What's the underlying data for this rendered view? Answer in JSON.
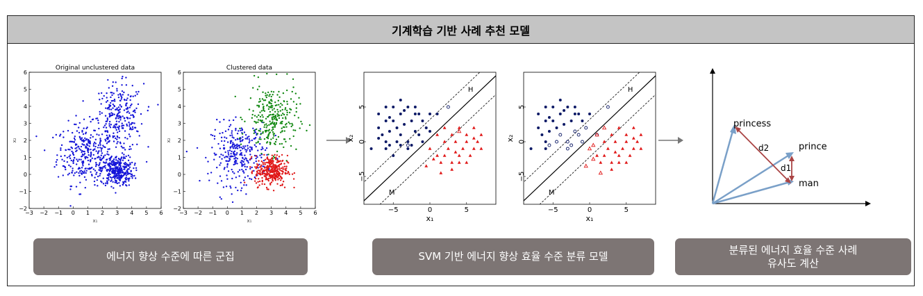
{
  "header": {
    "title": "기계학습 기반 사례 추천 모델"
  },
  "captions": [
    "에너지 향상 수준에 따른 군집",
    "SVM 기반 에너지 향상 효율 수준 분류 모델",
    "분류된 에너지 효율 수준 사례\n유사도 계산"
  ],
  "chart_data": [
    {
      "type": "scatter",
      "title": "Original unclustered data",
      "xlabel": "x₁",
      "ylabel": "x₂",
      "xlim": [
        -3,
        6
      ],
      "ylim": [
        -2,
        6
      ],
      "xticks": [
        "−3",
        "−2",
        "−1",
        "0",
        "1",
        "2",
        "3",
        "4",
        "5",
        "6"
      ],
      "yticks": [
        "−2",
        "−1",
        "0",
        "1",
        "2",
        "3",
        "4",
        "5",
        "6"
      ],
      "series": [
        {
          "color": "#1414d8",
          "clusters": [
            {
              "cx": 0.8,
              "cy": 1.2,
              "sx": 0.95,
              "sy": 0.9,
              "n": 300
            },
            {
              "cx": 3.1,
              "cy": 3.3,
              "sx": 0.85,
              "sy": 1.0,
              "n": 280
            },
            {
              "cx": 3.0,
              "cy": 0.2,
              "sx": 0.55,
              "sy": 0.45,
              "n": 320
            }
          ]
        }
      ]
    },
    {
      "type": "scatter",
      "title": "Clustered data",
      "xlabel": "x₁",
      "ylabel": "x₂",
      "xlim": [
        -3,
        6
      ],
      "ylim": [
        -2,
        6
      ],
      "xticks": [
        "−3",
        "−2",
        "−1",
        "0",
        "1",
        "2",
        "3",
        "4",
        "5",
        "6"
      ],
      "yticks": [
        "−2",
        "−1",
        "0",
        "1",
        "2",
        "3",
        "4",
        "5",
        "6"
      ],
      "series": [
        {
          "color": "#1414d8",
          "clusters": [
            {
              "cx": 0.8,
              "cy": 1.2,
              "sx": 0.95,
              "sy": 0.9,
              "n": 300
            }
          ]
        },
        {
          "color": "#118811",
          "clusters": [
            {
              "cx": 3.1,
              "cy": 3.3,
              "sx": 0.85,
              "sy": 1.0,
              "n": 280
            }
          ]
        },
        {
          "color": "#e01818",
          "clusters": [
            {
              "cx": 3.0,
              "cy": 0.2,
              "sx": 0.55,
              "sy": 0.45,
              "n": 320
            }
          ]
        }
      ]
    },
    {
      "type": "scatter",
      "xlabel": "x₁",
      "ylabel": "x₂",
      "xlim": [
        -9,
        9
      ],
      "ylim": [
        -9,
        10
      ],
      "xticks": [
        "−5",
        "0",
        "5"
      ],
      "yticks": [
        "−5",
        "0",
        "5"
      ],
      "annotations": [
        "H",
        "M"
      ],
      "series": [
        {
          "marker": "dot",
          "color": "#0d1a66",
          "points": [
            [
              -8,
              -1
            ],
            [
              -7,
              2
            ],
            [
              -7,
              4
            ],
            [
              -6.5,
              1
            ],
            [
              -6,
              0
            ],
            [
              -6,
              3
            ],
            [
              -6,
              5
            ],
            [
              -5.5,
              1.5
            ],
            [
              -5.5,
              -0.5
            ],
            [
              -5,
              3
            ],
            [
              -5,
              5
            ],
            [
              -4.5,
              2
            ],
            [
              -4.5,
              0
            ],
            [
              -4,
              4
            ],
            [
              -4,
              1
            ],
            [
              -4,
              6
            ],
            [
              -3.5,
              2.5
            ],
            [
              -3,
              0
            ],
            [
              -3,
              5
            ],
            [
              -3,
              -1
            ],
            [
              -2.5,
              3
            ],
            [
              -2,
              1.5
            ],
            [
              -2,
              5
            ],
            [
              -1.5,
              4
            ],
            [
              -1,
              3
            ],
            [
              -1,
              0
            ],
            [
              -0.5,
              2
            ],
            [
              0,
              4
            ],
            [
              -6,
              -1
            ],
            [
              -5,
              -2
            ],
            [
              -7,
              0.5
            ],
            [
              -3.5,
              4.5
            ],
            [
              -2.5,
              -0.5
            ],
            [
              -1.5,
              1
            ],
            [
              0,
              1.5
            ],
            [
              1,
              4
            ],
            [
              -4,
              -0.5
            ],
            [
              -5.5,
              3.5
            ],
            [
              -2,
              4
            ]
          ]
        },
        {
          "marker": "open-circle",
          "color": "#0d1a66",
          "points": [
            [
              2.5,
              5
            ],
            [
              -3,
              -0.5
            ]
          ]
        },
        {
          "marker": "triangle",
          "color": "#e01818",
          "points": [
            [
              0,
              -1
            ],
            [
              1,
              -2
            ],
            [
              1,
              1
            ],
            [
              1.5,
              -3
            ],
            [
              2,
              0
            ],
            [
              2,
              -2
            ],
            [
              2.5,
              -1
            ],
            [
              3,
              1
            ],
            [
              3,
              -3
            ],
            [
              3.5,
              0
            ],
            [
              4,
              2
            ],
            [
              4,
              -2
            ],
            [
              4.5,
              -1
            ],
            [
              5,
              0
            ],
            [
              5,
              1
            ],
            [
              5.5,
              -2
            ],
            [
              6,
              2
            ],
            [
              6,
              -1
            ],
            [
              6.5,
              0
            ],
            [
              7,
              1
            ],
            [
              3,
              -4
            ],
            [
              1.5,
              -4.5
            ],
            [
              4,
              -3
            ],
            [
              5,
              -3
            ],
            [
              6,
              0.5
            ],
            [
              2,
              2
            ],
            [
              3.5,
              -1.5
            ],
            [
              -0.5,
              -3.5
            ],
            [
              0.5,
              -2.5
            ],
            [
              7,
              -1
            ]
          ]
        },
        {
          "marker": "open-triangle",
          "color": "#e01818",
          "points": [
            [
              4,
              1.5
            ]
          ]
        }
      ]
    },
    {
      "type": "scatter",
      "xlabel": "x₁",
      "ylabel": "x₂",
      "xlim": [
        -9,
        9
      ],
      "ylim": [
        -9,
        10
      ],
      "xticks": [
        "−5",
        "0",
        "5"
      ],
      "yticks": [
        "−5",
        "0",
        "5"
      ],
      "annotations": [
        "H",
        "M"
      ],
      "series": [
        {
          "marker": "dot",
          "color": "#0d1a66",
          "points": [
            [
              -8,
              -1
            ],
            [
              -7,
              2
            ],
            [
              -7,
              4
            ],
            [
              -6.5,
              1
            ],
            [
              -6,
              0
            ],
            [
              -6,
              3
            ],
            [
              -6,
              5
            ],
            [
              -5.5,
              1.5
            ],
            [
              -5,
              3
            ],
            [
              -5,
              5
            ],
            [
              -4.5,
              2
            ],
            [
              -4,
              4
            ],
            [
              -4,
              6
            ],
            [
              -3.5,
              2.5
            ],
            [
              -3,
              5
            ],
            [
              -2.5,
              3
            ],
            [
              -2,
              5
            ],
            [
              -1.5,
              4
            ],
            [
              -1,
              3
            ],
            [
              0,
              4
            ],
            [
              -5.5,
              3.5
            ],
            [
              -3.5,
              4.5
            ],
            [
              -6,
              -1
            ],
            [
              -2,
              4
            ]
          ]
        },
        {
          "marker": "open-circle",
          "color": "#0d1a66",
          "points": [
            [
              -4.5,
              0
            ],
            [
              -4,
              1
            ],
            [
              -3,
              0
            ],
            [
              -3,
              -1
            ],
            [
              -2,
              1.5
            ],
            [
              -1,
              0
            ],
            [
              -0.5,
              2
            ],
            [
              1,
              1
            ],
            [
              2.5,
              5
            ],
            [
              -2.5,
              -0.5
            ],
            [
              -1.5,
              1
            ],
            [
              -5.5,
              -0.5
            ]
          ]
        },
        {
          "marker": "triangle",
          "color": "#e01818",
          "points": [
            [
              1,
              -2
            ],
            [
              1.5,
              -3
            ],
            [
              2,
              0
            ],
            [
              2,
              -2
            ],
            [
              2.5,
              -1
            ],
            [
              3,
              1
            ],
            [
              3,
              -3
            ],
            [
              3.5,
              0
            ],
            [
              4,
              2
            ],
            [
              4,
              -2
            ],
            [
              4.5,
              -1
            ],
            [
              5,
              0
            ],
            [
              5,
              1
            ],
            [
              5.5,
              -2
            ],
            [
              6,
              2
            ],
            [
              6,
              -1
            ],
            [
              6.5,
              0
            ],
            [
              7,
              1
            ],
            [
              3,
              -4
            ],
            [
              4,
              -3
            ],
            [
              5,
              -3
            ],
            [
              6,
              0.5
            ],
            [
              3.5,
              -1.5
            ],
            [
              7,
              -1
            ]
          ]
        },
        {
          "marker": "open-triangle",
          "color": "#e01818",
          "points": [
            [
              0,
              -1
            ],
            [
              1,
              1
            ],
            [
              -0.5,
              -3.5
            ],
            [
              0.5,
              -2.5
            ],
            [
              2,
              2
            ],
            [
              1.5,
              -4.5
            ],
            [
              0.5,
              -0.5
            ]
          ]
        }
      ]
    }
  ],
  "vector_diagram": {
    "labels": {
      "princess": "princess",
      "prince": "prince",
      "man": "man",
      "d1": "d1",
      "d2": "d2"
    },
    "colors": {
      "vector": "#7aa0c8",
      "distance": "#a44"
    }
  }
}
